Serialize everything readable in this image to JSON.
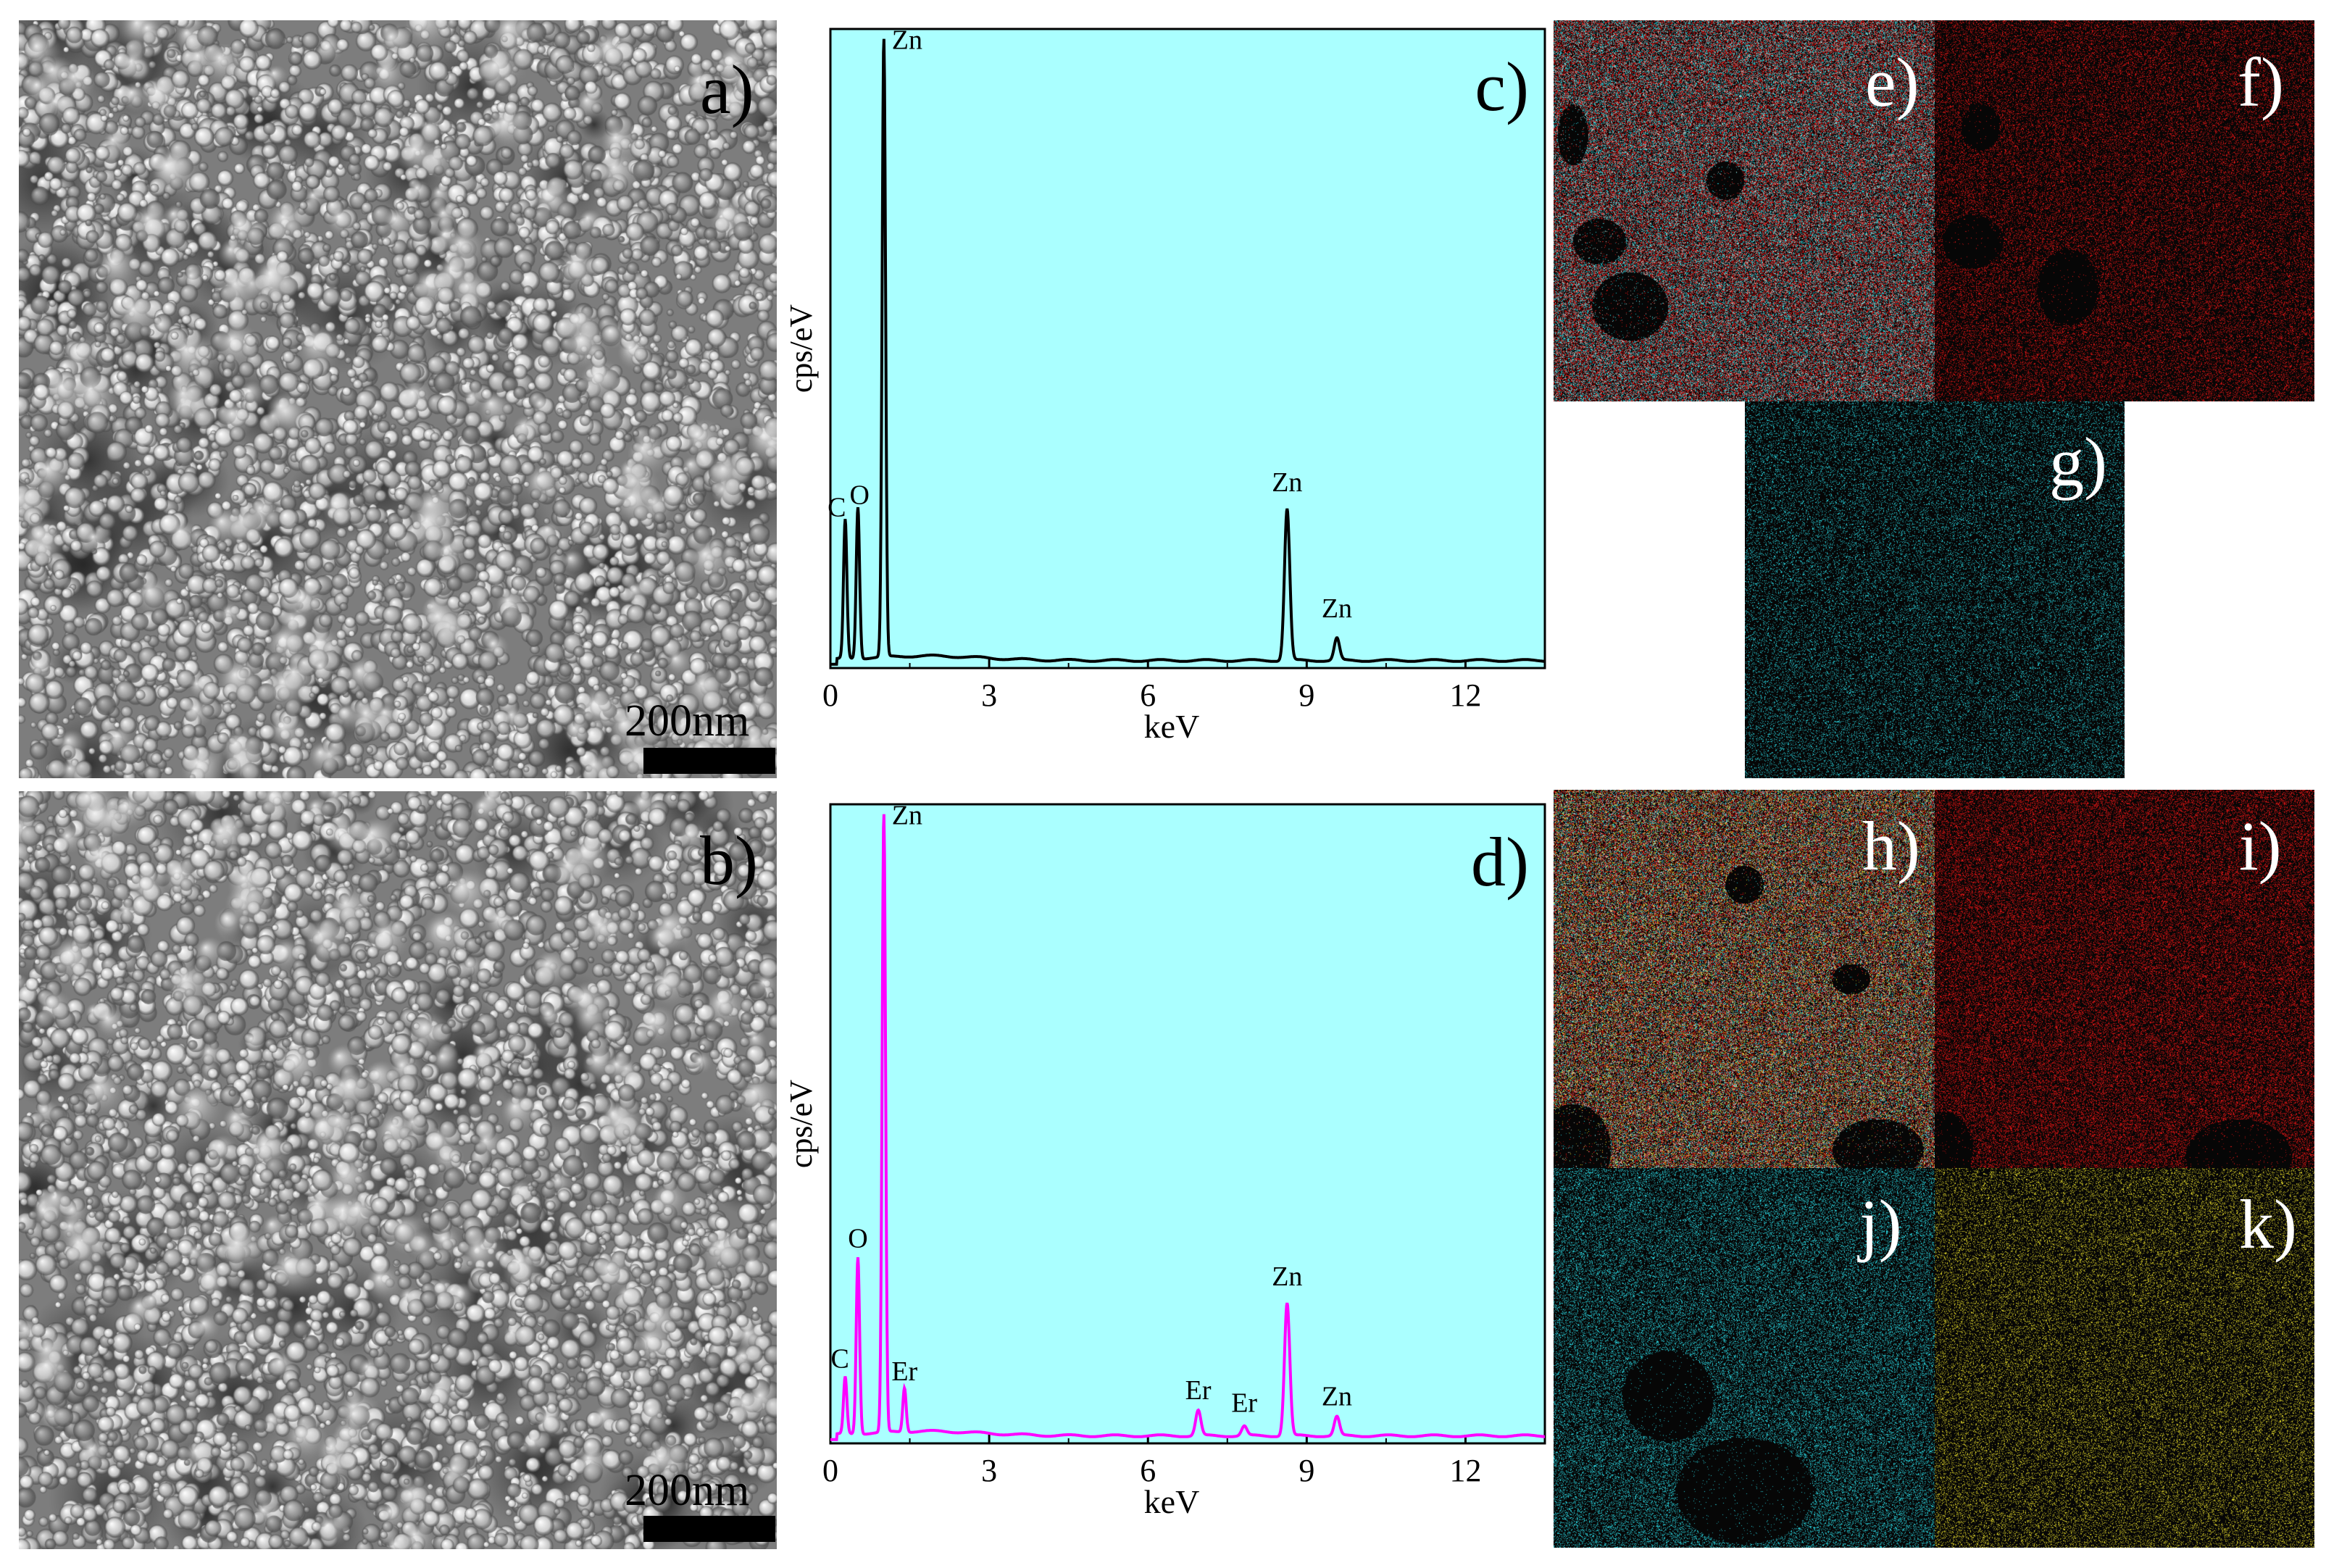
{
  "figure": {
    "panels": {
      "a": {
        "label": "a)",
        "scale_label": "200nm"
      },
      "b": {
        "label": "b)",
        "scale_label": "200nm"
      },
      "c": {
        "label": "c)"
      },
      "d": {
        "label": "d)"
      },
      "e": {
        "label": "e)"
      },
      "f": {
        "label": "f)"
      },
      "g": {
        "label": "g)"
      },
      "h": {
        "label": "h)"
      },
      "i": {
        "label": "i)"
      },
      "j": {
        "label": "j)"
      },
      "k": {
        "label": "k)"
      }
    }
  },
  "colors": {
    "plot_background": "#aaffff",
    "spectrum_c": "#000000",
    "spectrum_d": "#ff00ff",
    "map_red": "#cc1010",
    "map_cyan": "#20b8c0",
    "map_yellow": "#c8c020",
    "map_overlay": "#b0402a"
  },
  "chart_data": [
    {
      "id": "c",
      "type": "line",
      "xlabel": "keV",
      "ylabel": "cps/eV",
      "xlim": [
        0,
        13.5
      ],
      "ylim": [
        0,
        100
      ],
      "xticks": [
        "0",
        "3",
        "6",
        "9",
        "12"
      ],
      "xtick_values": [
        0,
        3,
        6,
        9,
        12
      ],
      "series": [
        {
          "peaks": [
            {
              "x": 0.28,
              "height": 22
            },
            {
              "x": 0.52,
              "height": 24
            },
            {
              "x": 1.01,
              "height": 98
            },
            {
              "x": 8.63,
              "height": 24
            },
            {
              "x": 9.57,
              "height": 3.5
            }
          ],
          "baseline": 1.2
        }
      ],
      "annotations": [
        {
          "text": "C",
          "x": 0.12,
          "y": 24
        },
        {
          "text": "O",
          "x": 0.55,
          "y": 26
        },
        {
          "text": "Zn",
          "x": 1.45,
          "y": 98
        },
        {
          "text": "Zn",
          "x": 8.63,
          "y": 28
        },
        {
          "text": "Zn",
          "x": 9.57,
          "y": 8
        }
      ]
    },
    {
      "id": "d",
      "type": "line",
      "xlabel": "keV",
      "ylabel": "cps/eV",
      "xlim": [
        0,
        13.5
      ],
      "ylim": [
        0,
        100
      ],
      "xticks": [
        "0",
        "3",
        "6",
        "9",
        "12"
      ],
      "xtick_values": [
        0,
        3,
        6,
        9,
        12
      ],
      "series": [
        {
          "peaks": [
            {
              "x": 0.28,
              "height": 9
            },
            {
              "x": 0.52,
              "height": 28
            },
            {
              "x": 1.01,
              "height": 98
            },
            {
              "x": 1.4,
              "height": 7
            },
            {
              "x": 6.95,
              "height": 4
            },
            {
              "x": 7.82,
              "height": 1.5
            },
            {
              "x": 8.63,
              "height": 21
            },
            {
              "x": 9.57,
              "height": 3
            }
          ],
          "baseline": 1.2
        }
      ],
      "annotations": [
        {
          "text": "C",
          "x": 0.18,
          "y": 12
        },
        {
          "text": "O",
          "x": 0.52,
          "y": 31
        },
        {
          "text": "Zn",
          "x": 1.45,
          "y": 98
        },
        {
          "text": "Er",
          "x": 1.4,
          "y": 10
        },
        {
          "text": "Er",
          "x": 6.95,
          "y": 7
        },
        {
          "text": "Er",
          "x": 7.82,
          "y": 5
        },
        {
          "text": "Zn",
          "x": 8.63,
          "y": 25
        },
        {
          "text": "Zn",
          "x": 9.57,
          "y": 6
        }
      ]
    }
  ]
}
